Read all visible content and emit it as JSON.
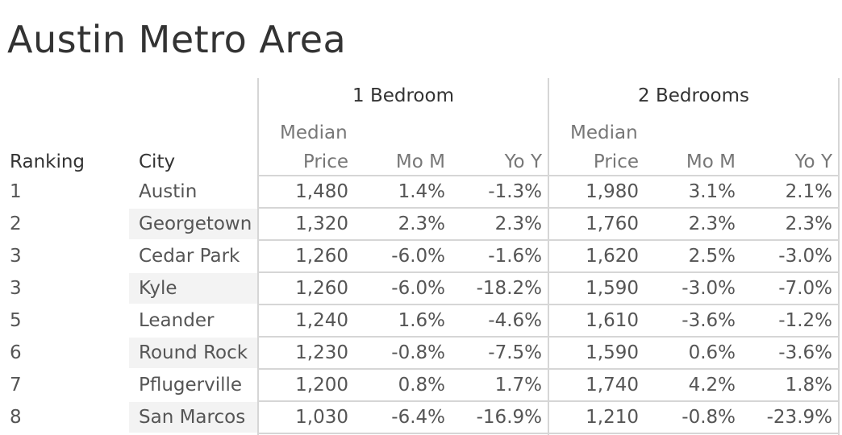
{
  "chart_data": {
    "type": "table",
    "title": "Austin Metro Area",
    "column_groups": [
      "1 Bedroom",
      "2 Bedrooms"
    ],
    "columns": {
      "ranking": "Ranking",
      "city": "City",
      "median_line1": "Median",
      "median_line2": "Price",
      "mom": "Mo M",
      "yoy": "Yo Y"
    },
    "rows": [
      {
        "ranking": "1",
        "city": "Austin",
        "b1_price": "1,480",
        "b1_mom": "1.4%",
        "b1_yoy": "-1.3%",
        "b2_price": "1,980",
        "b2_mom": "3.1%",
        "b2_yoy": "2.1%"
      },
      {
        "ranking": "2",
        "city": "Georgetown",
        "b1_price": "1,320",
        "b1_mom": "2.3%",
        "b1_yoy": "2.3%",
        "b2_price": "1,760",
        "b2_mom": "2.3%",
        "b2_yoy": "2.3%"
      },
      {
        "ranking": "3",
        "city": "Cedar Park",
        "b1_price": "1,260",
        "b1_mom": "-6.0%",
        "b1_yoy": "-1.6%",
        "b2_price": "1,620",
        "b2_mom": "2.5%",
        "b2_yoy": "-3.0%"
      },
      {
        "ranking": "3",
        "city": "Kyle",
        "b1_price": "1,260",
        "b1_mom": "-6.0%",
        "b1_yoy": "-18.2%",
        "b2_price": "1,590",
        "b2_mom": "-3.0%",
        "b2_yoy": "-7.0%"
      },
      {
        "ranking": "5",
        "city": "Leander",
        "b1_price": "1,240",
        "b1_mom": "1.6%",
        "b1_yoy": "-4.6%",
        "b2_price": "1,610",
        "b2_mom": "-3.6%",
        "b2_yoy": "-1.2%"
      },
      {
        "ranking": "6",
        "city": "Round Rock",
        "b1_price": "1,230",
        "b1_mom": "-0.8%",
        "b1_yoy": "-7.5%",
        "b2_price": "1,590",
        "b2_mom": "0.6%",
        "b2_yoy": "-3.6%"
      },
      {
        "ranking": "7",
        "city": "Pflugerville",
        "b1_price": "1,200",
        "b1_mom": "0.8%",
        "b1_yoy": "1.7%",
        "b2_price": "1,740",
        "b2_mom": "4.2%",
        "b2_yoy": "1.8%"
      },
      {
        "ranking": "8",
        "city": "San Marcos",
        "b1_price": "1,030",
        "b1_mom": "-6.4%",
        "b1_yoy": "-16.9%",
        "b2_price": "1,210",
        "b2_mom": "-0.8%",
        "b2_yoy": "-23.9%"
      }
    ]
  }
}
